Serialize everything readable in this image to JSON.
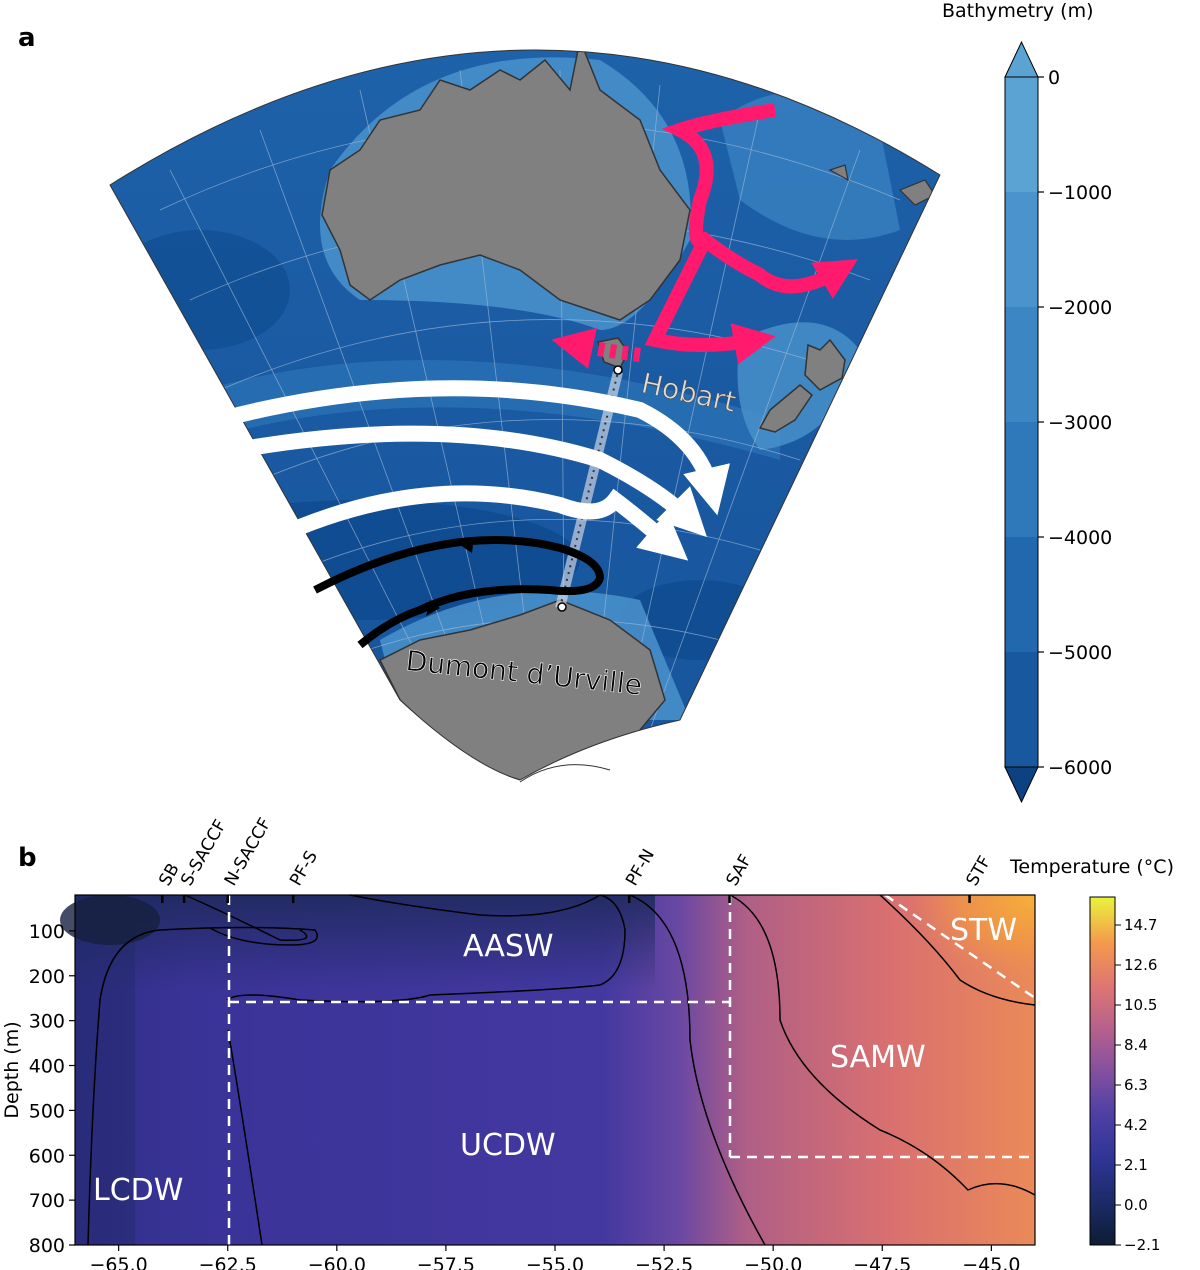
{
  "panel_a": {
    "letter": "a",
    "colorbar": {
      "label": "Bathymetry (m)",
      "ticks": [
        "0",
        "−1000",
        "−2000",
        "−3000",
        "−4000",
        "−5000",
        "−6000"
      ],
      "colors": [
        "#5ba3d3",
        "#4a93cc",
        "#3d86c4",
        "#2f78ba",
        "#2268ae",
        "#17589f",
        "#0c4182"
      ]
    },
    "places": {
      "hobart": "Hobart",
      "dumont": "Dumont d’Urville"
    }
  },
  "panel_b": {
    "letter": "b",
    "colorbar": {
      "label": "Temperature (°C)",
      "ticks": [
        "14.7",
        "12.6",
        "10.5",
        "8.4",
        "6.3",
        "4.2",
        "2.1",
        "0.0",
        "−2.1"
      ]
    },
    "ylabel": "Depth (m)",
    "yticks": [
      "100",
      "200",
      "300",
      "400",
      "500",
      "600",
      "700",
      "800"
    ],
    "xticks": [
      "−65.0",
      "−62.5",
      "−60.0",
      "−57.5",
      "−55.0",
      "−52.5",
      "−50.0",
      "−47.5",
      "−45.0"
    ],
    "fronts": [
      "SB",
      "S-SACCF",
      "N-SACCF",
      "PF-S",
      "PF-N",
      "SAF",
      "STF"
    ],
    "water_masses": {
      "aasw": "AASW",
      "ucdw": "UCDW",
      "lcdw": "LCDW",
      "samw": "SAMW",
      "stw": "STW"
    }
  },
  "chart_data": {
    "type": "heatmap",
    "x_range": [
      -66,
      -44
    ],
    "y_range": [
      800,
      20
    ],
    "xticks": [
      -65.0,
      -62.5,
      -60.0,
      -57.5,
      -55.0,
      -52.5,
      -50.0,
      -47.5,
      -45.0
    ],
    "yticks": [
      100,
      200,
      300,
      400,
      500,
      600,
      700,
      800
    ],
    "colorbar_range": [
      -2.1,
      14.7
    ],
    "front_positions": {
      "SB": -64.0,
      "S-SACCF": -63.5,
      "N-SACCF": -62.5,
      "PF-S": -61.0,
      "PF-N": -53.3,
      "SAF": -51.0,
      "STF": -45.5
    },
    "water_mass_boundaries": {
      "n_saccf_vertical_x": -62.5,
      "aasw_bottom_depth": 250,
      "saf_vertical_x": -51.0,
      "samw_bottom_depth": 600
    }
  }
}
